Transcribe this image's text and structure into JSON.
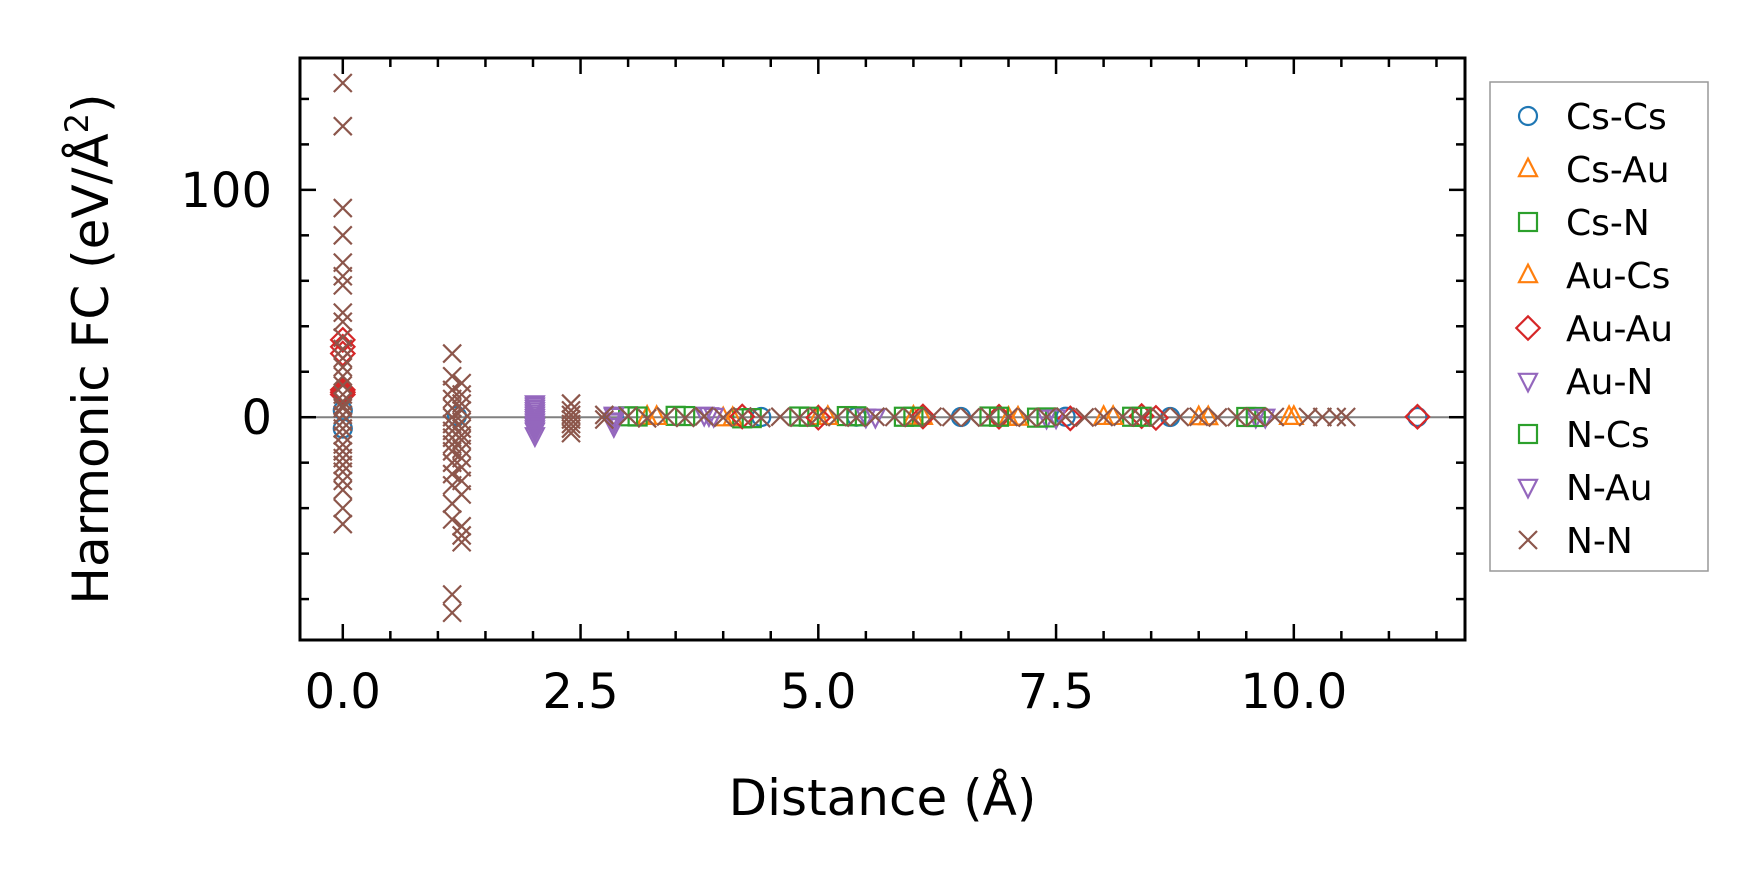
{
  "chart_data": {
    "type": "scatter",
    "xlabel": "Distance (Å)",
    "ylabel_main": "Harmonic FC (eV/Å",
    "ylabel_sup": "2",
    "ylabel_end": ")",
    "xlim": [
      -0.45,
      11.8
    ],
    "ylim": [
      -98,
      158
    ],
    "x_ticks": [
      0.0,
      2.5,
      5.0,
      7.5,
      10.0
    ],
    "x_tick_labels": [
      "0.0",
      "2.5",
      "5.0",
      "7.5",
      "10.0"
    ],
    "x_minor_ticks": [
      0.5,
      1.0,
      1.5,
      2.0,
      3.0,
      3.5,
      4.0,
      4.5,
      5.5,
      6.0,
      6.5,
      7.0,
      8.0,
      8.5,
      9.0,
      9.5,
      10.5,
      11.0,
      11.5
    ],
    "y_ticks": [
      0,
      100
    ],
    "y_tick_labels": [
      "0",
      "100"
    ],
    "y_minor_ticks": [
      -80,
      -60,
      -40,
      -20,
      20,
      40,
      60,
      80,
      120,
      140
    ],
    "zero_line": true,
    "grid": false,
    "legend_position": "outside-right",
    "series": [
      {
        "name": "Cs-Cs",
        "marker": "circle",
        "color": "#1f77b4",
        "x": [
          0.0,
          0.0,
          0.0,
          1.2,
          2.85,
          4.4,
          5.4,
          6.5,
          7.6,
          8.7,
          11.3
        ],
        "y": [
          10,
          3,
          -5,
          0.5,
          0.2,
          0.1,
          0.2,
          0.1,
          0.2,
          0.1,
          0.1
        ]
      },
      {
        "name": "Cs-Au",
        "marker": "triangle-up",
        "color": "#ff7f0e",
        "x": [
          3.2,
          4.0,
          5.0,
          6.0,
          7.0,
          8.0,
          9.0,
          10.0
        ],
        "y": [
          0.3,
          -0.4,
          0.2,
          0.3,
          -0.2,
          0.2,
          0.1,
          0.2
        ]
      },
      {
        "name": "Cs-N",
        "marker": "square",
        "color": "#2ca02c",
        "x": [
          3.0,
          3.5,
          4.2,
          4.8,
          5.3,
          5.9,
          6.8,
          7.3,
          8.3,
          9.5
        ],
        "y": [
          0.4,
          0.6,
          -0.5,
          0.3,
          0.5,
          0.2,
          0.3,
          -0.2,
          0.2,
          0.1
        ]
      },
      {
        "name": "Au-Cs",
        "marker": "triangle-up",
        "color": "#ff7f0e",
        "x": [
          3.3,
          4.1,
          5.1,
          6.1,
          7.1,
          8.1,
          9.1,
          9.95
        ],
        "y": [
          0.2,
          -0.3,
          0.2,
          0.2,
          -0.1,
          0.2,
          0.1,
          0.2
        ]
      },
      {
        "name": "Au-Au",
        "marker": "diamond",
        "color": "#d62728",
        "x": [
          0.0,
          0.0,
          0.0,
          0.0,
          0.0,
          0.0,
          4.2,
          5.0,
          6.1,
          6.9,
          7.65,
          8.4,
          8.55,
          11.3
        ],
        "y": [
          34,
          31,
          28,
          12,
          10,
          11,
          0.3,
          -0.2,
          0.3,
          0.2,
          -0.5,
          0.5,
          -0.3,
          0.2
        ]
      },
      {
        "name": "Au-N",
        "marker": "triangle-down",
        "color": "#9467bd",
        "x": [
          2.02,
          2.02,
          2.02,
          2.02,
          2.02,
          2.02,
          2.02,
          2.02,
          2.85,
          2.85,
          2.85,
          3.8,
          3.9,
          5.5,
          7.4,
          9.6
        ],
        "y": [
          6,
          4,
          2,
          0,
          -2,
          -4,
          -6,
          -8,
          1,
          -2,
          -4,
          1,
          0.5,
          0.2,
          -0.3,
          0.1
        ]
      },
      {
        "name": "N-Cs",
        "marker": "square",
        "color": "#2ca02c",
        "x": [
          3.1,
          3.6,
          4.3,
          4.9,
          5.4,
          6.0,
          6.9,
          7.4,
          8.4,
          9.6
        ],
        "y": [
          0.3,
          0.5,
          -0.4,
          0.2,
          0.4,
          0.2,
          0.2,
          -0.1,
          0.2,
          0.1
        ]
      },
      {
        "name": "N-Au",
        "marker": "triangle-down",
        "color": "#9467bd",
        "x": [
          2.02,
          2.02,
          2.02,
          2.02,
          2.02,
          2.02,
          2.85,
          2.85,
          3.85,
          5.6,
          7.5,
          9.7
        ],
        "y": [
          5,
          3,
          1,
          -1,
          -3,
          -5,
          0.5,
          -1.5,
          0.8,
          0.1,
          -0.2,
          0.1
        ]
      },
      {
        "name": "N-N",
        "marker": "x",
        "color": "#8c564b",
        "x": [
          0.0,
          0.0,
          0.0,
          0.0,
          0.0,
          0.0,
          0.0,
          0.0,
          0.0,
          0.0,
          0.0,
          0.0,
          0.0,
          0.0,
          0.0,
          0.0,
          0.0,
          0.0,
          0.0,
          0.0,
          0.0,
          0.0,
          0.0,
          0.0,
          0.0,
          0.0,
          0.0,
          0.0,
          0.0,
          0.0,
          0.0,
          0.0,
          1.15,
          1.15,
          1.15,
          1.15,
          1.15,
          1.15,
          1.15,
          1.15,
          1.15,
          1.15,
          1.15,
          1.15,
          1.15,
          1.15,
          1.15,
          1.15,
          1.15,
          1.15,
          1.25,
          1.25,
          1.25,
          1.25,
          1.25,
          1.25,
          1.25,
          1.25,
          1.25,
          1.25,
          1.25,
          1.25,
          1.25,
          1.25,
          1.25,
          1.25,
          2.4,
          2.4,
          2.4,
          2.4,
          2.4,
          2.4,
          2.4,
          2.75,
          2.75,
          3.0,
          3.2,
          3.4,
          3.6,
          3.8,
          4.0,
          4.2,
          4.4,
          4.6,
          4.8,
          5.0,
          5.2,
          5.4,
          5.6,
          5.8,
          6.0,
          6.2,
          6.4,
          6.6,
          6.8,
          7.0,
          7.2,
          7.4,
          7.6,
          7.8,
          8.0,
          8.2,
          8.4,
          8.6,
          8.8,
          9.0,
          9.2,
          9.4,
          9.6,
          9.8,
          10.15,
          10.3,
          10.45,
          10.55
        ],
        "y": [
          147,
          128,
          92,
          80,
          68,
          62,
          58,
          46,
          42,
          35,
          30,
          26,
          22,
          18,
          14,
          10,
          7,
          4,
          1,
          -2,
          -5,
          -8,
          -12,
          -15,
          -18,
          -21,
          -24,
          -28,
          -32,
          -40,
          -47,
          5,
          28,
          18,
          12,
          8,
          4,
          0,
          -3,
          -6,
          -9,
          -12,
          -15,
          -20,
          -25,
          -30,
          -38,
          -45,
          -78,
          -86,
          15,
          10,
          6,
          3,
          -2,
          -5,
          -8,
          -10,
          -14,
          -18,
          -22,
          -28,
          -34,
          -48,
          -52,
          -55,
          6,
          3,
          1,
          -1,
          -3,
          -5,
          -7,
          1,
          -1,
          0.5,
          -0.5,
          0.3,
          -0.3,
          0.4,
          -0.2,
          0.3,
          -0.4,
          0.2,
          -0.2,
          0.3,
          0.1,
          -0.2,
          0.2,
          0.1,
          -0.3,
          0.2,
          0.1,
          -0.1,
          0.2,
          0.1,
          -0.2,
          0.1,
          0.2,
          -0.1,
          0.1,
          0.2,
          -0.1,
          0.1,
          0.1,
          0.2,
          -0.1,
          0.1,
          0.1,
          0.1,
          0.1,
          0.1,
          0.1,
          0.1
        ]
      }
    ]
  }
}
